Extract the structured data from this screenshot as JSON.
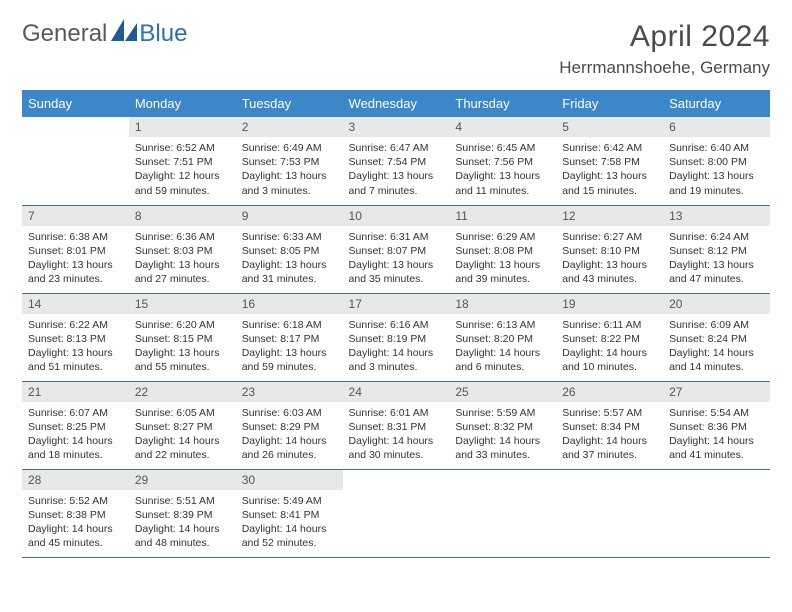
{
  "logo": {
    "general": "General",
    "blue": "Blue"
  },
  "title": "April 2024",
  "location": "Herrmannshoehe, Germany",
  "colors": {
    "header_bg": "#3b87c8",
    "header_text": "#ffffff",
    "daynum_bg": "#e8e8e8",
    "daynum_text": "#555555",
    "body_text": "#333333",
    "rule": "#3b6fa0",
    "title_text": "#4a4a4a",
    "logo_gray": "#5a5a5a",
    "logo_blue": "#2a71b8",
    "background": "#ffffff"
  },
  "weekdays": [
    "Sunday",
    "Monday",
    "Tuesday",
    "Wednesday",
    "Thursday",
    "Friday",
    "Saturday"
  ],
  "weeks": [
    [
      {
        "n": "",
        "sr": "",
        "ss": "",
        "dl1": "",
        "dl2": "",
        "empty": true
      },
      {
        "n": "1",
        "sr": "Sunrise: 6:52 AM",
        "ss": "Sunset: 7:51 PM",
        "dl1": "Daylight: 12 hours",
        "dl2": "and 59 minutes."
      },
      {
        "n": "2",
        "sr": "Sunrise: 6:49 AM",
        "ss": "Sunset: 7:53 PM",
        "dl1": "Daylight: 13 hours",
        "dl2": "and 3 minutes."
      },
      {
        "n": "3",
        "sr": "Sunrise: 6:47 AM",
        "ss": "Sunset: 7:54 PM",
        "dl1": "Daylight: 13 hours",
        "dl2": "and 7 minutes."
      },
      {
        "n": "4",
        "sr": "Sunrise: 6:45 AM",
        "ss": "Sunset: 7:56 PM",
        "dl1": "Daylight: 13 hours",
        "dl2": "and 11 minutes."
      },
      {
        "n": "5",
        "sr": "Sunrise: 6:42 AM",
        "ss": "Sunset: 7:58 PM",
        "dl1": "Daylight: 13 hours",
        "dl2": "and 15 minutes."
      },
      {
        "n": "6",
        "sr": "Sunrise: 6:40 AM",
        "ss": "Sunset: 8:00 PM",
        "dl1": "Daylight: 13 hours",
        "dl2": "and 19 minutes."
      }
    ],
    [
      {
        "n": "7",
        "sr": "Sunrise: 6:38 AM",
        "ss": "Sunset: 8:01 PM",
        "dl1": "Daylight: 13 hours",
        "dl2": "and 23 minutes."
      },
      {
        "n": "8",
        "sr": "Sunrise: 6:36 AM",
        "ss": "Sunset: 8:03 PM",
        "dl1": "Daylight: 13 hours",
        "dl2": "and 27 minutes."
      },
      {
        "n": "9",
        "sr": "Sunrise: 6:33 AM",
        "ss": "Sunset: 8:05 PM",
        "dl1": "Daylight: 13 hours",
        "dl2": "and 31 minutes."
      },
      {
        "n": "10",
        "sr": "Sunrise: 6:31 AM",
        "ss": "Sunset: 8:07 PM",
        "dl1": "Daylight: 13 hours",
        "dl2": "and 35 minutes."
      },
      {
        "n": "11",
        "sr": "Sunrise: 6:29 AM",
        "ss": "Sunset: 8:08 PM",
        "dl1": "Daylight: 13 hours",
        "dl2": "and 39 minutes."
      },
      {
        "n": "12",
        "sr": "Sunrise: 6:27 AM",
        "ss": "Sunset: 8:10 PM",
        "dl1": "Daylight: 13 hours",
        "dl2": "and 43 minutes."
      },
      {
        "n": "13",
        "sr": "Sunrise: 6:24 AM",
        "ss": "Sunset: 8:12 PM",
        "dl1": "Daylight: 13 hours",
        "dl2": "and 47 minutes."
      }
    ],
    [
      {
        "n": "14",
        "sr": "Sunrise: 6:22 AM",
        "ss": "Sunset: 8:13 PM",
        "dl1": "Daylight: 13 hours",
        "dl2": "and 51 minutes."
      },
      {
        "n": "15",
        "sr": "Sunrise: 6:20 AM",
        "ss": "Sunset: 8:15 PM",
        "dl1": "Daylight: 13 hours",
        "dl2": "and 55 minutes."
      },
      {
        "n": "16",
        "sr": "Sunrise: 6:18 AM",
        "ss": "Sunset: 8:17 PM",
        "dl1": "Daylight: 13 hours",
        "dl2": "and 59 minutes."
      },
      {
        "n": "17",
        "sr": "Sunrise: 6:16 AM",
        "ss": "Sunset: 8:19 PM",
        "dl1": "Daylight: 14 hours",
        "dl2": "and 3 minutes."
      },
      {
        "n": "18",
        "sr": "Sunrise: 6:13 AM",
        "ss": "Sunset: 8:20 PM",
        "dl1": "Daylight: 14 hours",
        "dl2": "and 6 minutes."
      },
      {
        "n": "19",
        "sr": "Sunrise: 6:11 AM",
        "ss": "Sunset: 8:22 PM",
        "dl1": "Daylight: 14 hours",
        "dl2": "and 10 minutes."
      },
      {
        "n": "20",
        "sr": "Sunrise: 6:09 AM",
        "ss": "Sunset: 8:24 PM",
        "dl1": "Daylight: 14 hours",
        "dl2": "and 14 minutes."
      }
    ],
    [
      {
        "n": "21",
        "sr": "Sunrise: 6:07 AM",
        "ss": "Sunset: 8:25 PM",
        "dl1": "Daylight: 14 hours",
        "dl2": "and 18 minutes."
      },
      {
        "n": "22",
        "sr": "Sunrise: 6:05 AM",
        "ss": "Sunset: 8:27 PM",
        "dl1": "Daylight: 14 hours",
        "dl2": "and 22 minutes."
      },
      {
        "n": "23",
        "sr": "Sunrise: 6:03 AM",
        "ss": "Sunset: 8:29 PM",
        "dl1": "Daylight: 14 hours",
        "dl2": "and 26 minutes."
      },
      {
        "n": "24",
        "sr": "Sunrise: 6:01 AM",
        "ss": "Sunset: 8:31 PM",
        "dl1": "Daylight: 14 hours",
        "dl2": "and 30 minutes."
      },
      {
        "n": "25",
        "sr": "Sunrise: 5:59 AM",
        "ss": "Sunset: 8:32 PM",
        "dl1": "Daylight: 14 hours",
        "dl2": "and 33 minutes."
      },
      {
        "n": "26",
        "sr": "Sunrise: 5:57 AM",
        "ss": "Sunset: 8:34 PM",
        "dl1": "Daylight: 14 hours",
        "dl2": "and 37 minutes."
      },
      {
        "n": "27",
        "sr": "Sunrise: 5:54 AM",
        "ss": "Sunset: 8:36 PM",
        "dl1": "Daylight: 14 hours",
        "dl2": "and 41 minutes."
      }
    ],
    [
      {
        "n": "28",
        "sr": "Sunrise: 5:52 AM",
        "ss": "Sunset: 8:38 PM",
        "dl1": "Daylight: 14 hours",
        "dl2": "and 45 minutes."
      },
      {
        "n": "29",
        "sr": "Sunrise: 5:51 AM",
        "ss": "Sunset: 8:39 PM",
        "dl1": "Daylight: 14 hours",
        "dl2": "and 48 minutes."
      },
      {
        "n": "30",
        "sr": "Sunrise: 5:49 AM",
        "ss": "Sunset: 8:41 PM",
        "dl1": "Daylight: 14 hours",
        "dl2": "and 52 minutes."
      },
      {
        "n": "",
        "sr": "",
        "ss": "",
        "dl1": "",
        "dl2": "",
        "empty": true
      },
      {
        "n": "",
        "sr": "",
        "ss": "",
        "dl1": "",
        "dl2": "",
        "empty": true
      },
      {
        "n": "",
        "sr": "",
        "ss": "",
        "dl1": "",
        "dl2": "",
        "empty": true
      },
      {
        "n": "",
        "sr": "",
        "ss": "",
        "dl1": "",
        "dl2": "",
        "empty": true
      }
    ]
  ]
}
